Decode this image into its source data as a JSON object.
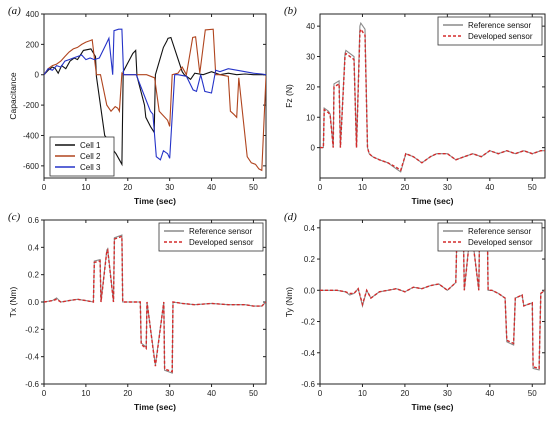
{
  "chart_data": [
    {
      "type": "line",
      "panel_label": "(a)",
      "xlabel": "Time (sec)",
      "ylabel": "Capacitance",
      "xlim": [
        0,
        53
      ],
      "ylim": [
        -680,
        400
      ],
      "xticks": [
        0,
        10,
        20,
        30,
        40,
        50
      ],
      "yticks": [
        -600,
        -400,
        -200,
        0,
        200,
        400
      ],
      "legend_position": "bottom-left",
      "series": [
        {
          "name": "Cell 1",
          "color": "#111111",
          "x": [
            0,
            1,
            2,
            2.6,
            3.4,
            4.2,
            5.2,
            6.2,
            7.2,
            8,
            9.4,
            11.2,
            12.3,
            12.5,
            14.5,
            15.4,
            15.8,
            17.2,
            18,
            18.6,
            18.9,
            21.2,
            21.9,
            22.2,
            24,
            24.3,
            25.4,
            26.3,
            26.6,
            28.5,
            29.3,
            29.6,
            30.3,
            33,
            33.5,
            35,
            36,
            38,
            40,
            42,
            44,
            46,
            48,
            50,
            52,
            53
          ],
          "y": [
            0,
            30,
            50,
            45,
            10,
            60,
            40,
            90,
            110,
            100,
            160,
            170,
            120,
            -10,
            -400,
            -430,
            -470,
            -520,
            -560,
            -590,
            20,
            140,
            160,
            -10,
            -200,
            -280,
            -340,
            -380,
            0,
            180,
            220,
            240,
            245,
            20,
            0,
            -30,
            10,
            0,
            20,
            0,
            10,
            0,
            5,
            0,
            0,
            0
          ]
        },
        {
          "name": "Cell 2",
          "color": "#b0451f",
          "x": [
            0,
            1,
            2,
            3,
            4,
            5,
            6,
            7,
            8,
            9,
            10,
            11,
            11.5,
            12.5,
            13.5,
            15,
            16,
            17,
            17.6,
            18,
            18.6,
            19,
            21,
            24.5,
            26.4,
            27.5,
            29.5,
            30,
            30.6,
            32,
            33,
            34,
            35.5,
            36.2,
            37.2,
            38.5,
            40.4,
            41,
            42,
            44,
            44.5,
            45.3,
            46,
            46.5,
            48.5,
            49.5,
            50.5,
            51.3,
            52,
            53
          ],
          "y": [
            0,
            40,
            60,
            70,
            90,
            120,
            150,
            170,
            180,
            200,
            215,
            225,
            230,
            0,
            0,
            -200,
            -240,
            -210,
            -220,
            -240,
            10,
            0,
            0,
            0,
            -20,
            -240,
            -300,
            -340,
            0,
            10,
            50,
            0,
            245,
            250,
            10,
            295,
            300,
            0,
            0,
            -10,
            -240,
            -260,
            -280,
            -20,
            -540,
            -580,
            -590,
            -620,
            -630,
            -10
          ]
        },
        {
          "name": "Cell 3",
          "color": "#2533c8",
          "x": [
            0,
            1,
            2,
            3,
            4,
            5,
            6,
            7,
            8,
            9,
            10,
            11,
            12,
            13.2,
            14.8,
            15.5,
            16.4,
            16.7,
            17.8,
            18.6,
            19,
            19.7,
            21,
            22,
            25.4,
            26,
            26.8,
            27.8,
            28.5,
            29.5,
            30,
            31.2,
            32,
            34,
            35.6,
            36.4,
            37.4,
            38.4,
            40,
            41,
            42,
            44,
            46,
            48,
            50,
            52,
            53
          ],
          "y": [
            0,
            40,
            30,
            60,
            50,
            90,
            100,
            110,
            120,
            130,
            100,
            110,
            100,
            110,
            200,
            240,
            0,
            290,
            300,
            300,
            0,
            0,
            0,
            0,
            -240,
            -260,
            -540,
            -560,
            -500,
            -520,
            -550,
            0,
            0,
            -10,
            -100,
            -110,
            0,
            -110,
            -120,
            30,
            20,
            40,
            30,
            20,
            10,
            5,
            0
          ]
        }
      ]
    },
    {
      "type": "line",
      "panel_label": "(b)",
      "xlabel": "Time (sec)",
      "ylabel": "Fz (N)",
      "xlim": [
        0,
        53
      ],
      "ylim": [
        -10,
        44
      ],
      "xticks": [
        0,
        10,
        20,
        30,
        40,
        50
      ],
      "yticks": [
        0,
        10,
        20,
        30,
        40
      ],
      "legend_position": "top-right",
      "series": [
        {
          "name": "Reference sensor",
          "color": "#8a8a8a",
          "x": [
            0,
            0.8,
            1,
            2,
            2.4,
            3.1,
            3.3,
            4.5,
            4.8,
            5.9,
            6.1,
            8,
            8.6,
            9.4,
            9.6,
            10.6,
            11.2,
            11.6,
            12.4,
            14,
            16,
            18,
            19,
            20.2,
            22,
            24,
            26,
            27.5,
            30,
            32,
            34,
            36,
            38,
            40,
            42,
            44,
            46,
            48,
            50,
            52,
            53
          ],
          "y": [
            0,
            0,
            13,
            12,
            11,
            0,
            21,
            22,
            0,
            31,
            32,
            30,
            0,
            40,
            41,
            39,
            0,
            -2,
            -3,
            -4,
            -5,
            -7,
            -8,
            -2,
            -3,
            -5,
            -3,
            -2,
            -2,
            -4,
            -3,
            -2,
            -3,
            -1,
            -2,
            -1,
            -2,
            -1,
            -2,
            -1,
            -1
          ]
        },
        {
          "name": "Developed sensor",
          "color": "#d42b2b",
          "x": [
            0,
            0.8,
            1,
            2,
            2.4,
            3.1,
            3.3,
            4.5,
            4.8,
            5.9,
            6.1,
            8,
            8.6,
            9.4,
            9.6,
            10.6,
            11.2,
            11.6,
            12.4,
            14,
            16,
            18,
            19,
            20.2,
            22,
            24,
            26,
            27.5,
            30,
            32,
            34,
            36,
            38,
            40,
            42,
            44,
            46,
            48,
            50,
            52,
            53
          ],
          "y": [
            0,
            0,
            12.5,
            11.5,
            10.5,
            0,
            20,
            21,
            0,
            30,
            31,
            29,
            0,
            38,
            39,
            37,
            0,
            -2,
            -3,
            -4,
            -5,
            -6.5,
            -7.5,
            -2,
            -3,
            -5,
            -3,
            -2,
            -2,
            -4,
            -3,
            -2,
            -3,
            -1,
            -2,
            -1,
            -2,
            -1,
            -2,
            -1,
            -1
          ]
        }
      ]
    },
    {
      "type": "line",
      "panel_label": "(c)",
      "xlabel": "Time (sec)",
      "ylabel": "Tx (Nm)",
      "xlim": [
        0,
        53
      ],
      "ylim": [
        -0.6,
        0.6
      ],
      "xticks": [
        0,
        10,
        20,
        30,
        40,
        50
      ],
      "yticks": [
        -0.6,
        -0.4,
        -0.2,
        0.0,
        0.2,
        0.4,
        0.6
      ],
      "legend_position": "top-right",
      "series": [
        {
          "name": "Reference sensor",
          "color": "#8a8a8a",
          "x": [
            0,
            2,
            3,
            4,
            6,
            8,
            10,
            11.8,
            12,
            13.4,
            13.6,
            15,
            15.2,
            16.6,
            16.8,
            18.6,
            18.8,
            20,
            22,
            23,
            23.2,
            24.4,
            24.6,
            26.4,
            26.6,
            28.6,
            28.8,
            30.6,
            30.8,
            33,
            36,
            40,
            44,
            48,
            50,
            52,
            53
          ],
          "y": [
            0,
            0.01,
            0.03,
            0,
            0.01,
            0.02,
            0.01,
            0,
            0.3,
            0.31,
            0,
            0.38,
            0.39,
            0,
            0.47,
            0.49,
            0,
            0,
            0,
            0,
            -0.3,
            -0.33,
            0,
            -0.42,
            -0.46,
            0,
            -0.5,
            -0.52,
            0,
            -0.01,
            -0.02,
            -0.01,
            -0.02,
            -0.02,
            -0.03,
            -0.03,
            0
          ]
        },
        {
          "name": "Developed sensor",
          "color": "#d42b2b",
          "x": [
            0,
            2,
            3,
            4,
            6,
            8,
            10,
            11.8,
            12,
            13.4,
            13.6,
            15,
            15.2,
            16.6,
            16.8,
            18.6,
            18.8,
            20,
            22,
            23,
            23.2,
            24.4,
            24.6,
            26.4,
            26.6,
            28.6,
            28.8,
            30.6,
            30.8,
            33,
            36,
            40,
            44,
            48,
            50,
            52,
            53
          ],
          "y": [
            0,
            0.01,
            0.02,
            0,
            0.01,
            0.02,
            0.01,
            0,
            0.29,
            0.3,
            0,
            0.37,
            0.38,
            0,
            0.46,
            0.48,
            0,
            0,
            0,
            0,
            -0.31,
            -0.34,
            0,
            -0.43,
            -0.47,
            0,
            -0.49,
            -0.51,
            0,
            -0.01,
            -0.02,
            -0.01,
            -0.02,
            -0.02,
            -0.03,
            -0.03,
            0
          ]
        }
      ]
    },
    {
      "type": "line",
      "panel_label": "(d)",
      "xlabel": "Time (sec)",
      "ylabel": "Ty (Nm)",
      "xlim": [
        0,
        53
      ],
      "ylim": [
        -0.6,
        0.45
      ],
      "xticks": [
        0,
        10,
        20,
        30,
        40,
        50
      ],
      "yticks": [
        -0.6,
        -0.4,
        -0.2,
        0.0,
        0.2,
        0.4
      ],
      "legend_position": "top-right",
      "series": [
        {
          "name": "Reference sensor",
          "color": "#8a8a8a",
          "x": [
            0,
            2,
            4,
            6,
            7,
            8,
            9,
            10,
            11,
            12,
            14,
            16,
            18,
            20,
            22,
            24,
            26,
            28,
            30,
            32,
            32.2,
            33.8,
            34,
            35.4,
            35.6,
            37.4,
            37.6,
            39.4,
            39.6,
            40.5,
            42,
            43.6,
            44,
            45.6,
            46,
            47.6,
            48,
            50,
            50.2,
            51.6,
            52,
            53
          ],
          "y": [
            0,
            0,
            0,
            -0.01,
            -0.03,
            -0.02,
            0.01,
            -0.1,
            0,
            -0.05,
            -0.01,
            0,
            0.01,
            -0.01,
            0.02,
            0.01,
            0.03,
            0.04,
            0,
            0.05,
            0.3,
            0.33,
            0,
            0.38,
            0.41,
            0,
            0.41,
            0.43,
            0,
            0,
            -0.02,
            -0.05,
            -0.33,
            -0.35,
            -0.05,
            -0.03,
            -0.1,
            -0.08,
            -0.5,
            -0.51,
            -0.02,
            0
          ]
        },
        {
          "name": "Developed sensor",
          "color": "#d42b2b",
          "x": [
            0,
            2,
            4,
            6,
            7,
            8,
            9,
            10,
            11,
            12,
            14,
            16,
            18,
            20,
            22,
            24,
            26,
            28,
            30,
            32,
            32.2,
            33.8,
            34,
            35.4,
            35.6,
            37.4,
            37.6,
            39.4,
            39.6,
            40.5,
            42,
            43.6,
            44,
            45.6,
            46,
            47.6,
            48,
            50,
            50.2,
            51.6,
            52,
            53
          ],
          "y": [
            0,
            0,
            0,
            -0.01,
            -0.02,
            -0.02,
            0.01,
            -0.09,
            0,
            -0.05,
            -0.01,
            0,
            0.01,
            -0.01,
            0.02,
            0.01,
            0.03,
            0.04,
            0,
            0.05,
            0.29,
            0.32,
            0,
            0.37,
            0.4,
            0,
            0.4,
            0.42,
            0,
            0,
            -0.02,
            -0.05,
            -0.32,
            -0.34,
            -0.05,
            -0.03,
            -0.1,
            -0.08,
            -0.49,
            -0.5,
            -0.02,
            0
          ]
        }
      ]
    }
  ]
}
